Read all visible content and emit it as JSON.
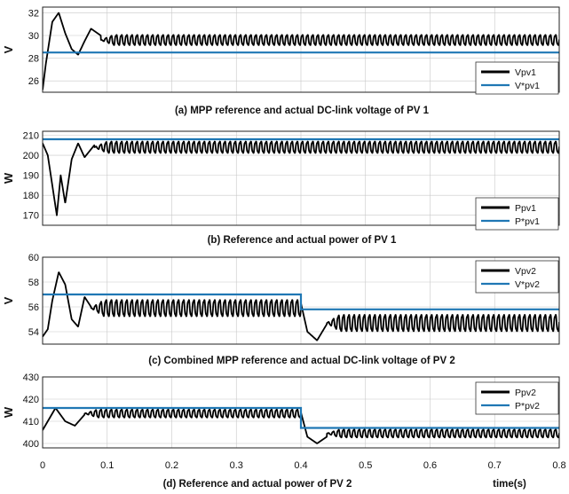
{
  "colors": {
    "actual": "#000000",
    "reference": "#1f77b4",
    "grid": "#c8c8c8"
  },
  "x_axis": {
    "label": "time(s)",
    "ticks": [
      "0",
      "0.1",
      "0.2",
      "0.3",
      "0.4",
      "0.5",
      "0.6",
      "0.7",
      "0.8"
    ]
  },
  "chart_data": [
    {
      "type": "line",
      "caption": "(a) MPP reference and actual DC-link voltage of PV 1",
      "ylabel": "V",
      "xlim": [
        0,
        0.8
      ],
      "ylim": [
        25,
        32.5
      ],
      "yticks": [
        26,
        28,
        30,
        32
      ],
      "legend_position": "bottom-right",
      "series": [
        {
          "name": "Vpv1",
          "role": "actual",
          "mean": 29.6,
          "ripple_amplitude": 0.55,
          "transient": {
            "x": [
              0,
              0.005,
              0.015,
              0.025,
              0.035,
              0.045,
              0.055,
              0.065,
              0.075,
              0.09
            ],
            "y": [
              25.2,
              27.5,
              31.2,
              32.0,
              30.2,
              28.8,
              28.3,
              29.5,
              30.6,
              30.0
            ]
          }
        },
        {
          "name": "V*pv1",
          "role": "reference",
          "x": [
            0,
            0.8
          ],
          "y": [
            28.5,
            28.5
          ]
        }
      ]
    },
    {
      "type": "line",
      "caption": "(b) Reference and actual power of PV 1",
      "ylabel": "W",
      "xlim": [
        0,
        0.8
      ],
      "ylim": [
        165,
        212
      ],
      "yticks": [
        170,
        180,
        190,
        200,
        210
      ],
      "legend_position": "bottom-right",
      "series": [
        {
          "name": "Ppv1",
          "role": "actual",
          "mean": 204,
          "ripple_amplitude": 3.5,
          "transient": {
            "x": [
              0,
              0.008,
              0.015,
              0.022,
              0.028,
              0.035,
              0.045,
              0.055,
              0.065,
              0.08
            ],
            "y": [
              206,
              200,
              185,
              170,
              190,
              176,
              198,
              206,
              199,
              205
            ]
          }
        },
        {
          "name": "P*pv1",
          "role": "reference",
          "x": [
            0,
            0.8
          ],
          "y": [
            208,
            208
          ]
        }
      ]
    },
    {
      "type": "line",
      "caption": "(c) Combined MPP reference and actual DC-link voltage of PV 2",
      "ylabel": "V",
      "xlim": [
        0,
        0.8
      ],
      "ylim": [
        53,
        60
      ],
      "yticks": [
        54,
        56,
        58,
        60
      ],
      "legend_position": "top-right",
      "series": [
        {
          "name": "Vpv2",
          "role": "actual",
          "step_x": 0.4,
          "before_mean": 55.9,
          "after_mean": 54.7,
          "ripple_amplitude": 0.8,
          "transient": {
            "x": [
              0,
              0.008,
              0.015,
              0.025,
              0.035,
              0.045,
              0.055,
              0.065,
              0.075
            ],
            "y": [
              53.6,
              54.2,
              56.5,
              58.8,
              57.8,
              55.0,
              54.4,
              56.8,
              56.0
            ]
          },
          "post_step_transient": {
            "x": [
              0.4,
              0.41,
              0.425,
              0.44
            ],
            "y": [
              56.3,
              54.0,
              53.3,
              54.6
            ]
          }
        },
        {
          "name": "V*pv2",
          "role": "reference",
          "x": [
            0,
            0.4,
            0.4,
            0.8
          ],
          "y": [
            57,
            57,
            55.8,
            55.8
          ]
        }
      ]
    },
    {
      "type": "line",
      "caption": "(d) Reference and actual power of PV 2",
      "ylabel": "W",
      "xlim": [
        0,
        0.8
      ],
      "ylim": [
        398,
        430
      ],
      "yticks": [
        400,
        410,
        420,
        430
      ],
      "legend_position": "top-right",
      "series": [
        {
          "name": "Ppv2",
          "role": "actual",
          "step_x": 0.4,
          "before_mean": 413.5,
          "after_mean": 404.5,
          "ripple_amplitude": 2.2,
          "transient": {
            "x": [
              0,
              0.01,
              0.02,
              0.035,
              0.05,
              0.065
            ],
            "y": [
              406,
              411,
              416,
              410,
              408,
              413
            ]
          },
          "post_step_transient": {
            "x": [
              0.4,
              0.41,
              0.425,
              0.44
            ],
            "y": [
              414,
              403,
              400,
              403
            ]
          }
        },
        {
          "name": "P*pv2",
          "role": "reference",
          "x": [
            0,
            0.4,
            0.4,
            0.8
          ],
          "y": [
            416,
            416,
            407,
            407
          ]
        }
      ]
    }
  ]
}
